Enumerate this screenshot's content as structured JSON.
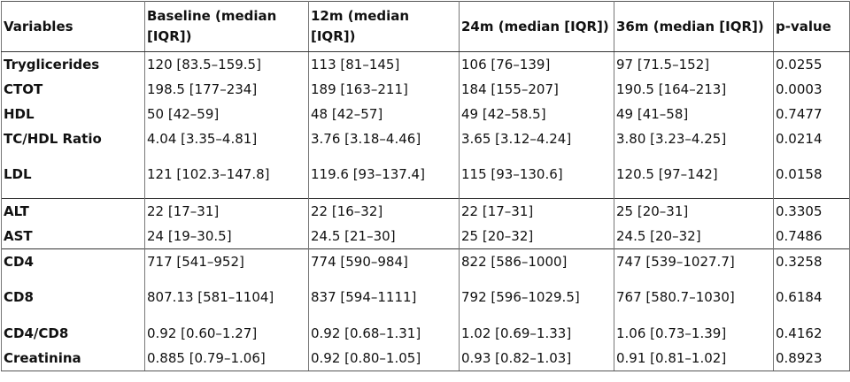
{
  "table": {
    "header": [
      "Variables",
      "Baseline (median [IQR])",
      "12m (median [IQR])",
      "24m (median [IQR])",
      "36m (median [IQR])",
      "p-value"
    ],
    "rows": [
      [
        "Tryglicerides",
        "120 [83.5–159.5]",
        "113 [81–145]",
        "106 [76–139]",
        "97 [71.5–152]",
        "0.0255"
      ],
      [
        "CTOT",
        "198.5 [177–234]",
        "189 [163–211]",
        "184 [155–207]",
        "190.5 [164–213]",
        "0.0003"
      ],
      [
        "HDL",
        "50 [42–59]",
        "48 [42–57]",
        "49 [42–58.5]",
        "49 [41–58]",
        "0.7477"
      ],
      [
        "TC/HDL Ratio",
        "4.04 [3.35–4.81]",
        "3.76 [3.18–4.46]",
        "3.65 [3.12–4.24]",
        "3.80 [3.23–4.25]",
        "0.0214"
      ],
      [
        "LDL",
        "121 [102.3–147.8]",
        "119.6 [93–137.4]",
        "115 [93–130.6]",
        "120.5 [97–142]",
        "0.0158"
      ],
      [
        "ALT",
        "22 [17–31]",
        "22 [16–32]",
        "22 [17–31]",
        "25 [20–31]",
        "0.3305"
      ],
      [
        "AST",
        "24 [19–30.5]",
        "24.5 [21–30]",
        "25 [20–32]",
        "24.5 [20–32]",
        "0.7486"
      ],
      [
        "CD4",
        "717 [541–952]",
        "774 [590–984]",
        "822 [586–1000]",
        "747 [539–1027.7]",
        "0.3258"
      ],
      [
        "CD8",
        "807.13 [581–1104]",
        "837 [594–1111]",
        "792 [596–1029.5]",
        "767 [580.7–1030]",
        "0.6184"
      ],
      [
        "CD4/CD8",
        "0.92 [0.60–1.27]",
        "0.92 [0.68–1.31]",
        "1.02 [0.69–1.33]",
        "1.06 [0.73–1.39]",
        "0.4162"
      ],
      [
        "Creatinina",
        "0.885 [0.79–1.06]",
        "0.92 [0.80–1.05]",
        "0.93 [0.82–1.03]",
        "0.91 [0.81–1.02]",
        "0.8923"
      ]
    ]
  }
}
